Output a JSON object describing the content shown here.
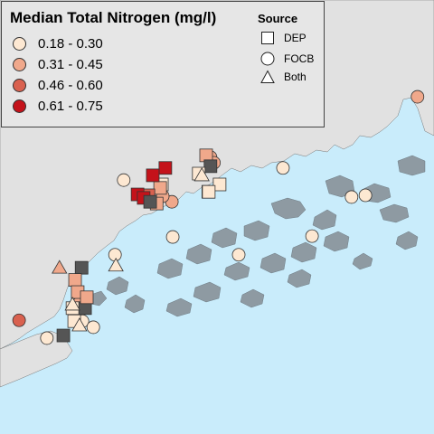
{
  "legend": {
    "title": "Median Total Nitrogen (mg/l)",
    "classes": [
      {
        "label": "0.18 - 0.30",
        "color": "#fde8d2"
      },
      {
        "label": "0.31 - 0.45",
        "color": "#f0a88b"
      },
      {
        "label": "0.46 - 0.60",
        "color": "#d9614f"
      },
      {
        "label": "0.61 - 0.75",
        "color": "#c4121a"
      }
    ],
    "source_title": "Source",
    "sources": [
      {
        "label": "DEP",
        "shape": "square"
      },
      {
        "label": "FOCB",
        "shape": "circle"
      },
      {
        "label": "Both",
        "shape": "triangle"
      }
    ]
  },
  "colors": {
    "water": "#c9ecfb",
    "land": "#e1e1e1",
    "island": "#8e9aa2",
    "no_data": "#555555"
  },
  "stations": [
    {
      "shape": "circle",
      "class": 1,
      "lon": 0.962,
      "lat": 0.777
    },
    {
      "shape": "circle",
      "class": 0,
      "lon": 0.652,
      "lat": 0.613
    },
    {
      "shape": "circle",
      "class": 0,
      "lon": 0.81,
      "lat": 0.546
    },
    {
      "shape": "circle",
      "class": 0,
      "lon": 0.842,
      "lat": 0.55
    },
    {
      "shape": "circle",
      "class": 0,
      "lon": 0.719,
      "lat": 0.456
    },
    {
      "shape": "circle",
      "class": 0,
      "lon": 0.55,
      "lat": 0.413
    },
    {
      "shape": "circle",
      "class": 0,
      "lon": 0.398,
      "lat": 0.454
    },
    {
      "shape": "circle",
      "class": 0,
      "lon": 0.265,
      "lat": 0.413
    },
    {
      "shape": "circle",
      "class": 0,
      "lon": 0.285,
      "lat": 0.585
    },
    {
      "shape": "circle",
      "class": 1,
      "lon": 0.396,
      "lat": 0.535
    },
    {
      "shape": "circle",
      "class": 1,
      "lon": 0.485,
      "lat": 0.638
    },
    {
      "shape": "circle",
      "class": 1,
      "lon": 0.493,
      "lat": 0.625
    },
    {
      "shape": "circle",
      "class": 2,
      "lon": 0.044,
      "lat": 0.262
    },
    {
      "shape": "circle",
      "class": 0,
      "lon": 0.108,
      "lat": 0.221
    },
    {
      "shape": "circle",
      "class": 0,
      "lon": 0.19,
      "lat": 0.26
    },
    {
      "shape": "circle",
      "class": 0,
      "lon": 0.215,
      "lat": 0.246
    },
    {
      "shape": "circle",
      "class": 1,
      "lon": 0.181,
      "lat": 0.3
    },
    {
      "shape": "circle",
      "class": 1,
      "lon": 0.375,
      "lat": 0.548
    },
    {
      "shape": "square",
      "class": 0,
      "lon": 0.48,
      "lat": 0.558
    },
    {
      "shape": "square",
      "class": 0,
      "lon": 0.373,
      "lat": 0.575
    },
    {
      "shape": "square",
      "class": 1,
      "lon": 0.475,
      "lat": 0.642
    },
    {
      "shape": "square",
      "class": 1,
      "lon": 0.369,
      "lat": 0.567
    },
    {
      "shape": "square",
      "class": 1,
      "lon": 0.361,
      "lat": 0.531
    },
    {
      "shape": "square",
      "class": 2,
      "lon": 0.342,
      "lat": 0.55
    },
    {
      "shape": "square",
      "class": 3,
      "lon": 0.381,
      "lat": 0.613
    },
    {
      "shape": "square",
      "class": 3,
      "lon": 0.352,
      "lat": 0.596
    },
    {
      "shape": "square",
      "class": 3,
      "lon": 0.317,
      "lat": 0.552
    },
    {
      "shape": "square",
      "class": 3,
      "lon": 0.331,
      "lat": 0.544
    },
    {
      "shape": "square",
      "class": -1,
      "lon": 0.485,
      "lat": 0.617
    },
    {
      "shape": "square",
      "class": -1,
      "lon": 0.346,
      "lat": 0.535
    },
    {
      "shape": "square",
      "class": -1,
      "lon": 0.188,
      "lat": 0.383
    },
    {
      "shape": "square",
      "class": -1,
      "lon": 0.196,
      "lat": 0.29
    },
    {
      "shape": "square",
      "class": -1,
      "lon": 0.146,
      "lat": 0.227
    },
    {
      "shape": "square",
      "class": 1,
      "lon": 0.173,
      "lat": 0.355
    },
    {
      "shape": "square",
      "class": 1,
      "lon": 0.179,
      "lat": 0.327
    },
    {
      "shape": "square",
      "class": 1,
      "lon": 0.2,
      "lat": 0.315
    },
    {
      "shape": "square",
      "class": 0,
      "lon": 0.506,
      "lat": 0.575
    },
    {
      "shape": "square",
      "class": 0,
      "lon": 0.481,
      "lat": 0.558
    },
    {
      "shape": "square",
      "class": 0,
      "lon": 0.458,
      "lat": 0.6
    },
    {
      "shape": "square",
      "class": 0,
      "lon": 0.167,
      "lat": 0.29
    },
    {
      "shape": "square",
      "class": 0,
      "lon": 0.171,
      "lat": 0.26
    },
    {
      "shape": "triangle",
      "class": 1,
      "lon": 0.137,
      "lat": 0.383
    },
    {
      "shape": "triangle",
      "class": 0,
      "lon": 0.267,
      "lat": 0.388
    },
    {
      "shape": "triangle",
      "class": 0,
      "lon": 0.167,
      "lat": 0.298
    },
    {
      "shape": "triangle",
      "class": 0,
      "lon": 0.183,
      "lat": 0.25
    },
    {
      "shape": "triangle",
      "class": 0,
      "lon": 0.465,
      "lat": 0.596
    }
  ]
}
